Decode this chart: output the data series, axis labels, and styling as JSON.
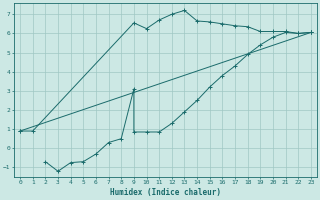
{
  "line1_x": [
    0,
    1,
    9,
    10,
    11,
    12,
    13,
    14,
    15,
    16,
    17,
    18,
    19,
    20,
    21,
    22,
    23
  ],
  "line1_y": [
    0.9,
    0.9,
    6.55,
    6.25,
    6.7,
    7.0,
    7.2,
    6.65,
    6.6,
    6.5,
    6.4,
    6.35,
    6.1,
    6.1,
    6.1,
    6.0,
    6.05
  ],
  "line2_x": [
    0,
    23
  ],
  "line2_y": [
    0.9,
    6.05
  ],
  "line3_x": [
    2,
    3,
    4,
    5,
    6,
    7,
    8,
    9,
    9,
    10,
    11,
    12,
    13,
    14,
    15,
    16,
    17,
    18,
    19,
    20,
    21,
    22,
    23
  ],
  "line3_y": [
    -0.7,
    -1.2,
    -0.75,
    -0.7,
    -0.3,
    0.3,
    0.5,
    3.1,
    0.85,
    0.85,
    0.85,
    1.3,
    1.9,
    2.5,
    3.2,
    3.8,
    4.3,
    4.9,
    5.4,
    5.8,
    6.05,
    6.0,
    6.05
  ],
  "bg_color": "#cce8e4",
  "line_color": "#1a6b6b",
  "grid_color": "#a0c8c4",
  "xlabel": "Humidex (Indice chaleur)",
  "xlim": [
    -0.5,
    23.5
  ],
  "ylim": [
    -1.5,
    7.6
  ],
  "xticks": [
    0,
    1,
    2,
    3,
    4,
    5,
    6,
    7,
    8,
    9,
    10,
    11,
    12,
    13,
    14,
    15,
    16,
    17,
    18,
    19,
    20,
    21,
    22,
    23
  ],
  "yticks": [
    -1,
    0,
    1,
    2,
    3,
    4,
    5,
    6,
    7
  ]
}
